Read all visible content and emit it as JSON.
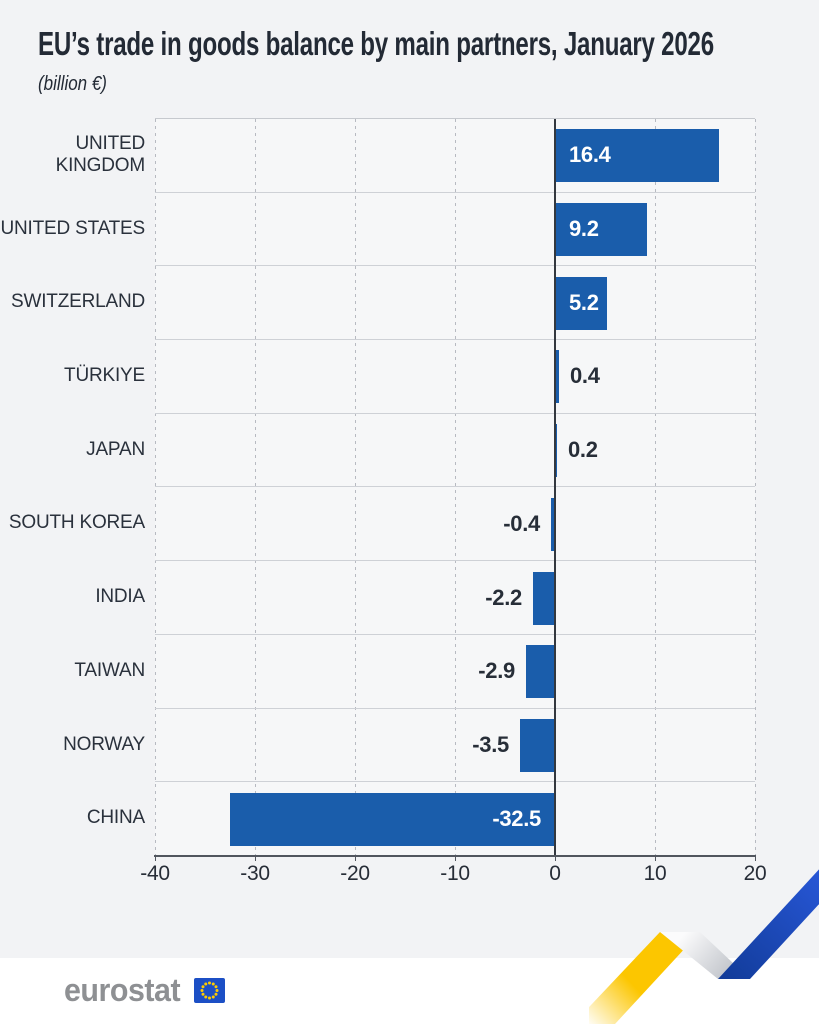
{
  "header": {
    "title": "EU’s trade in goods balance by main partners, January 2026",
    "subtitle": "(billion €)"
  },
  "chart_data": {
    "type": "bar",
    "orientation": "horizontal",
    "title": "EU’s trade in goods balance by main partners, January 2026",
    "unit": "billion €",
    "categories": [
      "UNITED KINGDOM",
      "UNITED STATES",
      "SWITZERLAND",
      "TÜRKIYE",
      "JAPAN",
      "SOUTH KOREA",
      "INDIA",
      "TAIWAN",
      "NORWAY",
      "CHINA"
    ],
    "values": [
      16.4,
      9.2,
      5.2,
      0.4,
      0.2,
      -0.4,
      -2.2,
      -2.9,
      -3.5,
      -32.5
    ],
    "data_labels": [
      "16.4",
      "9.2",
      "5.2",
      "0.4",
      "0.2",
      "-0.4",
      "-2.2",
      "-2.9",
      "-3.5",
      "-32.5"
    ],
    "label_inside_bar": [
      true,
      true,
      true,
      false,
      false,
      false,
      false,
      false,
      false,
      true
    ],
    "xlim": [
      -40,
      20
    ],
    "xticks": [
      -40,
      -30,
      -20,
      -10,
      0,
      10,
      20
    ],
    "grid": "vertical-dashed",
    "legend": "none"
  },
  "footer": {
    "brand": "eurostat"
  },
  "colors": {
    "bar": "#1a5dab",
    "bar_label_inside": "#ffffff",
    "bar_label_outside": "#272e38",
    "text": "#232a35",
    "page_background": "#f2f3f5",
    "plot_background": "#f6f7f8",
    "logo_gray": "#8e9093",
    "flag_blue": "#1c4fc5",
    "star_yellow": "#ffcc00",
    "ribbon_yellow": "#fcc600",
    "ribbon_blue": "#2a5ade"
  }
}
